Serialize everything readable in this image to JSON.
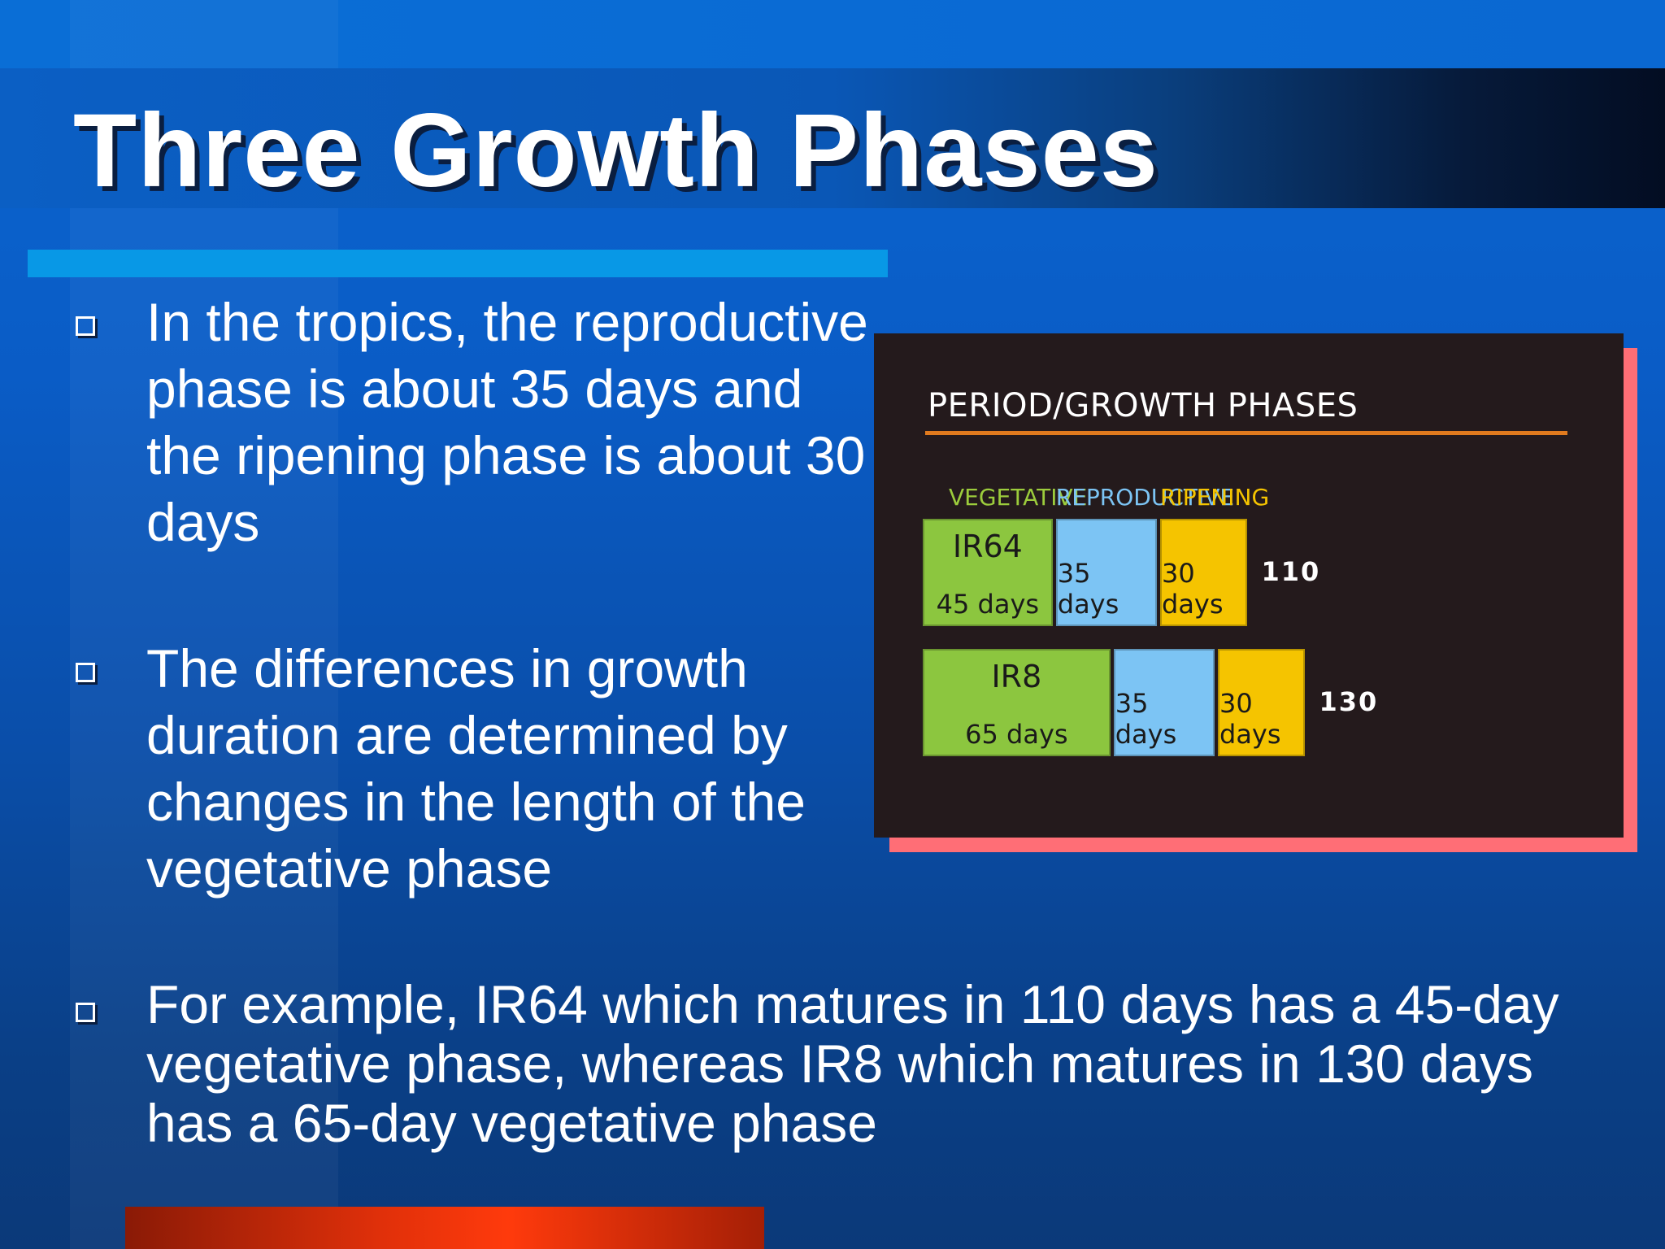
{
  "slide": {
    "title": "Three Growth Phases",
    "bullets": [
      "In the tropics, the reproductive phase is about 35 days and the ripening phase is about 30 days",
      "The differences in growth duration are determined by changes in the length of the vegetative phase",
      "For example, IR64 which matures in 110 days has a 45-day vegetative phase, whereas IR8 which matures in 130 days has a 65-day vegetative phase"
    ],
    "bullet_icon": "hollow-square-icon"
  },
  "chart_data": {
    "type": "bar",
    "title": "PERIOD/GROWTH PHASES",
    "orientation": "horizontal-stacked",
    "series": [
      {
        "name": "VEGETATIVE",
        "color": "#8cc63f"
      },
      {
        "name": "REPRODUCTIVE",
        "color": "#7cc4f4"
      },
      {
        "name": "RIPENING",
        "color": "#f5c400"
      }
    ],
    "rows": [
      {
        "name": "IR64",
        "values": [
          45,
          35,
          30
        ],
        "labels": [
          "45 days",
          "35 days",
          "30 days"
        ],
        "total": "110"
      },
      {
        "name": "IR8",
        "values": [
          65,
          35,
          30
        ],
        "labels": [
          "65 days",
          "35 days",
          "30 days"
        ],
        "total": "130"
      }
    ],
    "label_colors": {
      "vegetative": "#9ccc3c",
      "reproductive": "#7cc4f4",
      "ripening": "#f5c400"
    }
  }
}
